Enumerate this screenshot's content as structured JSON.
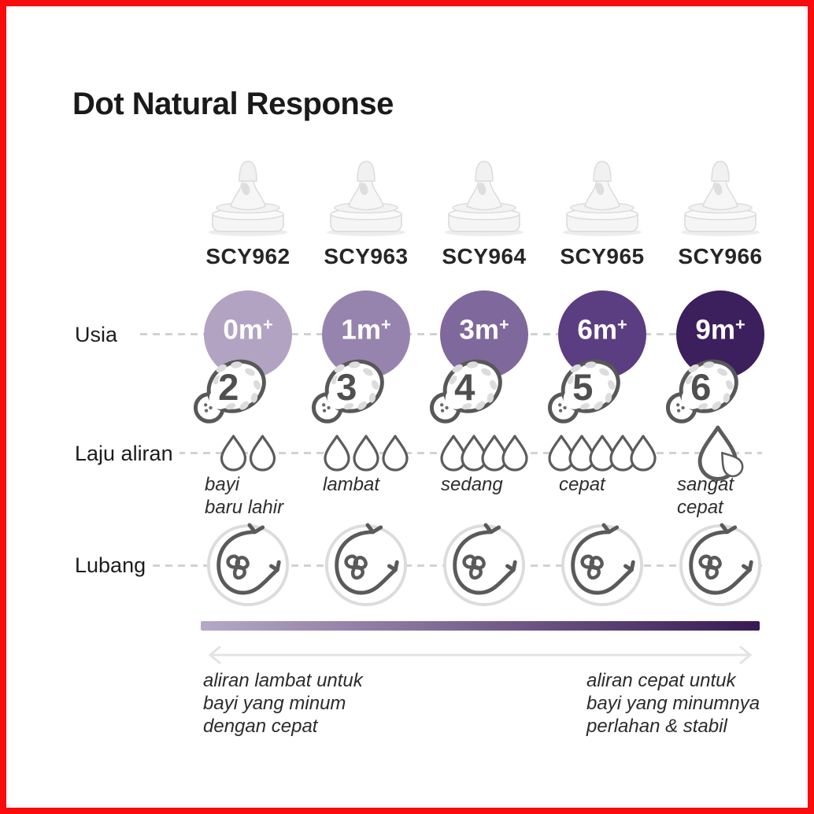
{
  "title": "Dot Natural Response",
  "frame_color": "#f90c0c",
  "row_labels": {
    "age": "Usia",
    "flow": "Laju aliran",
    "hole": "Lubang"
  },
  "columns": [
    {
      "model": "SCY962",
      "age": {
        "value": "0m",
        "plus": "+",
        "color": "#b2a3c3"
      },
      "number": "2",
      "flow": {
        "drops": 2,
        "style": "separate",
        "lines": [
          "bayi",
          "baru lahir"
        ]
      }
    },
    {
      "model": "SCY963",
      "age": {
        "value": "1m",
        "plus": "+",
        "color": "#9784ae"
      },
      "number": "3",
      "flow": {
        "drops": 3,
        "style": "separate",
        "lines": [
          "lambat"
        ]
      }
    },
    {
      "model": "SCY964",
      "age": {
        "value": "3m",
        "plus": "+",
        "color": "#7f689c"
      },
      "number": "4",
      "flow": {
        "drops": 4,
        "style": "overlap",
        "lines": [
          "sedang"
        ]
      }
    },
    {
      "model": "SCY965",
      "age": {
        "value": "6m",
        "plus": "+",
        "color": "#5b3e81"
      },
      "number": "5",
      "flow": {
        "drops": 5,
        "style": "overlap",
        "lines": [
          "cepat"
        ]
      }
    },
    {
      "model": "SCY966",
      "age": {
        "value": "9m",
        "plus": "+",
        "color": "#3c1f5d"
      },
      "number": "6",
      "flow": {
        "drops": 1,
        "style": "large",
        "lines": [
          "sangat",
          "cepat"
        ]
      }
    }
  ],
  "gradient": {
    "from": "#b6a8c7",
    "to": "#371a55"
  },
  "footer": {
    "left_lines": [
      "aliran lambat untuk",
      "bayi yang minum",
      "dengan cepat"
    ],
    "right_lines": [
      "aliran cepat untuk",
      "bayi yang minumnya",
      "perlahan & stabil"
    ]
  }
}
